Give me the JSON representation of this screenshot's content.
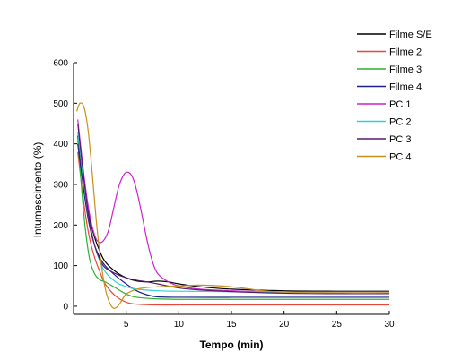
{
  "chart_data": {
    "type": "line",
    "xlabel": "Tempo (min)",
    "ylabel": "Intumescimento (%)",
    "xlim": [
      0,
      30
    ],
    "ylim": [
      -20,
      600
    ],
    "x_ticks": [
      "5",
      "10",
      "15",
      "20",
      "25",
      "30"
    ],
    "y_ticks": [
      "0",
      "100",
      "200",
      "300",
      "400",
      "500",
      "600"
    ],
    "x_tick_values": [
      5,
      10,
      15,
      20,
      25,
      30
    ],
    "y_tick_values": [
      0,
      100,
      200,
      300,
      400,
      500,
      600
    ],
    "grid": false,
    "legend_position": "top-right",
    "series": [
      {
        "name": "Filme S/E",
        "color": "#000000",
        "points": [
          [
            0.4,
            420
          ],
          [
            1,
            300
          ],
          [
            1.5,
            220
          ],
          [
            2,
            170
          ],
          [
            2.5,
            135
          ],
          [
            3,
            110
          ],
          [
            4,
            85
          ],
          [
            5,
            70
          ],
          [
            6,
            62
          ],
          [
            7,
            60
          ],
          [
            8,
            62
          ],
          [
            9,
            60
          ],
          [
            10,
            55
          ],
          [
            12,
            48
          ],
          [
            15,
            42
          ],
          [
            20,
            38
          ],
          [
            25,
            37
          ],
          [
            30,
            37
          ]
        ]
      },
      {
        "name": "Filme 2",
        "color": "#e8473b",
        "points": [
          [
            0.4,
            380
          ],
          [
            1,
            250
          ],
          [
            1.5,
            170
          ],
          [
            2,
            120
          ],
          [
            2.5,
            85
          ],
          [
            3,
            55
          ],
          [
            4,
            25
          ],
          [
            5,
            10
          ],
          [
            6,
            5
          ],
          [
            8,
            3
          ],
          [
            10,
            3
          ],
          [
            15,
            3
          ],
          [
            20,
            3
          ],
          [
            25,
            3
          ],
          [
            30,
            3
          ]
        ]
      },
      {
        "name": "Filme 3",
        "color": "#2bb22b",
        "points": [
          [
            0.4,
            410
          ],
          [
            1,
            220
          ],
          [
            1.5,
            120
          ],
          [
            2,
            80
          ],
          [
            2.5,
            65
          ],
          [
            3,
            60
          ],
          [
            4,
            45
          ],
          [
            5,
            30
          ],
          [
            6,
            22
          ],
          [
            8,
            18
          ],
          [
            10,
            17
          ],
          [
            15,
            17
          ],
          [
            20,
            17
          ],
          [
            25,
            17
          ],
          [
            30,
            17
          ]
        ]
      },
      {
        "name": "Filme 4",
        "color": "#1f1f8f",
        "points": [
          [
            0.4,
            400
          ],
          [
            1,
            280
          ],
          [
            1.5,
            200
          ],
          [
            2,
            150
          ],
          [
            2.5,
            120
          ],
          [
            3,
            100
          ],
          [
            4,
            75
          ],
          [
            5,
            55
          ],
          [
            6,
            38
          ],
          [
            7,
            28
          ],
          [
            8,
            23
          ],
          [
            10,
            22
          ],
          [
            15,
            22
          ],
          [
            20,
            22
          ],
          [
            25,
            22
          ],
          [
            30,
            22
          ]
        ]
      },
      {
        "name": "PC 1",
        "color": "#cc22cc",
        "points": [
          [
            0.4,
            460
          ],
          [
            1,
            320
          ],
          [
            1.5,
            230
          ],
          [
            2,
            175
          ],
          [
            2.4,
            158
          ],
          [
            2.8,
            160
          ],
          [
            3.3,
            185
          ],
          [
            3.8,
            240
          ],
          [
            4.3,
            295
          ],
          [
            4.8,
            325
          ],
          [
            5.2,
            330
          ],
          [
            5.6,
            318
          ],
          [
            6,
            285
          ],
          [
            6.5,
            225
          ],
          [
            7,
            160
          ],
          [
            7.5,
            110
          ],
          [
            8,
            80
          ],
          [
            9,
            60
          ],
          [
            10,
            50
          ],
          [
            12,
            42
          ],
          [
            15,
            38
          ],
          [
            20,
            35
          ],
          [
            25,
            35
          ],
          [
            30,
            35
          ]
        ]
      },
      {
        "name": "PC 2",
        "color": "#33d0d8",
        "points": [
          [
            0.4,
            430
          ],
          [
            1,
            300
          ],
          [
            1.5,
            210
          ],
          [
            2,
            150
          ],
          [
            2.5,
            110
          ],
          [
            3,
            85
          ],
          [
            4,
            60
          ],
          [
            5,
            48
          ],
          [
            6,
            42
          ],
          [
            8,
            38
          ],
          [
            10,
            37
          ],
          [
            15,
            36
          ],
          [
            20,
            35
          ],
          [
            25,
            35
          ],
          [
            30,
            35
          ]
        ]
      },
      {
        "name": "PC 3",
        "color": "#5a1a6a",
        "points": [
          [
            0.4,
            450
          ],
          [
            1,
            310
          ],
          [
            1.5,
            210
          ],
          [
            2,
            150
          ],
          [
            2.5,
            115
          ],
          [
            3,
            95
          ],
          [
            4,
            80
          ],
          [
            5,
            70
          ],
          [
            6,
            64
          ],
          [
            7,
            60
          ],
          [
            8,
            55
          ],
          [
            10,
            45
          ],
          [
            12,
            40
          ],
          [
            15,
            36
          ],
          [
            20,
            32
          ],
          [
            25,
            31
          ],
          [
            30,
            31
          ]
        ]
      },
      {
        "name": "PC 4",
        "color": "#c8901e",
        "points": [
          [
            0.3,
            480
          ],
          [
            0.6,
            500
          ],
          [
            1,
            490
          ],
          [
            1.4,
            430
          ],
          [
            1.8,
            320
          ],
          [
            2.2,
            200
          ],
          [
            2.6,
            110
          ],
          [
            3,
            45
          ],
          [
            3.4,
            10
          ],
          [
            3.8,
            -5
          ],
          [
            4.2,
            0
          ],
          [
            4.6,
            15
          ],
          [
            5,
            30
          ],
          [
            6,
            42
          ],
          [
            7,
            46
          ],
          [
            8,
            48
          ],
          [
            10,
            50
          ],
          [
            12,
            52
          ],
          [
            14,
            50
          ],
          [
            16,
            45
          ],
          [
            18,
            38
          ],
          [
            20,
            35
          ],
          [
            25,
            35
          ],
          [
            30,
            35
          ]
        ]
      }
    ]
  }
}
